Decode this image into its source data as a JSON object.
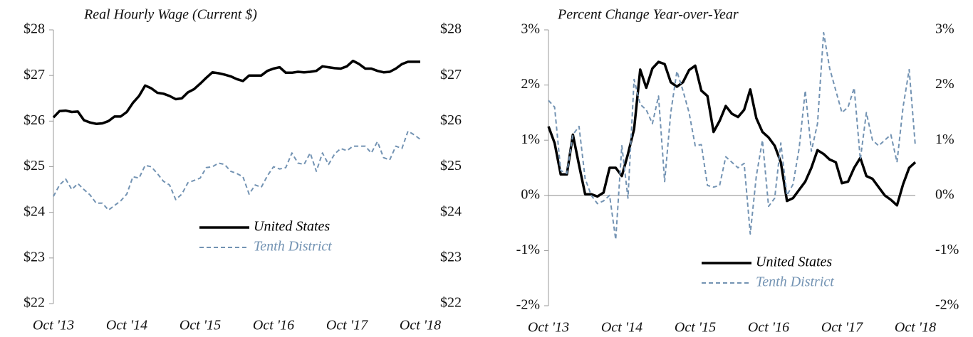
{
  "chart_data": [
    {
      "type": "line",
      "title": "Real Hourly Wage (Current $)",
      "categories": [
        "Oct '13",
        null,
        null,
        null,
        null,
        null,
        null,
        null,
        null,
        null,
        null,
        null,
        "Oct '14",
        null,
        null,
        null,
        null,
        null,
        null,
        null,
        null,
        null,
        null,
        null,
        "Oct '15",
        null,
        null,
        null,
        null,
        null,
        null,
        null,
        null,
        null,
        null,
        null,
        "Oct '16",
        null,
        null,
        null,
        null,
        null,
        null,
        null,
        null,
        null,
        null,
        null,
        "Oct '17",
        null,
        null,
        null,
        null,
        null,
        null,
        null,
        null,
        null,
        null,
        null,
        "Oct '18"
      ],
      "series": [
        {
          "name": "United States",
          "color": "#000000",
          "dashed": false,
          "values": [
            26.08,
            26.22,
            26.23,
            26.2,
            26.21,
            26.02,
            25.97,
            25.94,
            25.95,
            26.0,
            26.1,
            26.1,
            26.2,
            26.4,
            26.55,
            26.78,
            26.72,
            26.62,
            26.6,
            26.55,
            26.48,
            26.5,
            26.63,
            26.7,
            26.82,
            26.95,
            27.07,
            27.05,
            27.02,
            26.98,
            26.92,
            26.88,
            27.0,
            27.0,
            27.0,
            27.1,
            27.15,
            27.18,
            27.06,
            27.06,
            27.08,
            27.07,
            27.08,
            27.1,
            27.2,
            27.18,
            27.16,
            27.15,
            27.2,
            27.32,
            27.25,
            27.15,
            27.15,
            27.1,
            27.07,
            27.08,
            27.15,
            27.25,
            27.3,
            27.3,
            27.3
          ]
        },
        {
          "name": "Tenth District",
          "color": "#7393b3",
          "dashed": true,
          "values": [
            24.35,
            24.6,
            24.73,
            24.5,
            24.63,
            24.5,
            24.38,
            24.2,
            24.2,
            24.05,
            24.15,
            24.25,
            24.4,
            24.78,
            24.75,
            25.03,
            25.0,
            24.85,
            24.68,
            24.6,
            24.28,
            24.4,
            24.65,
            24.7,
            24.75,
            24.98,
            25.0,
            25.08,
            25.05,
            24.9,
            24.85,
            24.78,
            24.4,
            24.6,
            24.55,
            24.8,
            25.0,
            24.95,
            24.98,
            25.3,
            25.08,
            25.05,
            25.3,
            24.9,
            25.3,
            25.05,
            25.28,
            25.4,
            25.35,
            25.45,
            25.45,
            25.45,
            25.3,
            25.55,
            25.2,
            25.15,
            25.45,
            25.4,
            25.78,
            25.7,
            25.6
          ]
        }
      ],
      "ylim": [
        22,
        28
      ],
      "yticks": [
        {
          "value": 22,
          "label": "$22"
        },
        {
          "value": 23,
          "label": "$23"
        },
        {
          "value": 24,
          "label": "$24"
        },
        {
          "value": 25,
          "label": "$25"
        },
        {
          "value": 26,
          "label": "$26"
        },
        {
          "value": 27,
          "label": "$27"
        },
        {
          "value": 28,
          "label": "$28"
        }
      ],
      "zero_line": false
    },
    {
      "type": "line",
      "title": "Percent Change Year-over-Year",
      "categories": [
        "Oct '13",
        null,
        null,
        null,
        null,
        null,
        null,
        null,
        null,
        null,
        null,
        null,
        "Oct '14",
        null,
        null,
        null,
        null,
        null,
        null,
        null,
        null,
        null,
        null,
        null,
        "Oct '15",
        null,
        null,
        null,
        null,
        null,
        null,
        null,
        null,
        null,
        null,
        null,
        "Oct '16",
        null,
        null,
        null,
        null,
        null,
        null,
        null,
        null,
        null,
        null,
        null,
        "Oct '17",
        null,
        null,
        null,
        null,
        null,
        null,
        null,
        null,
        null,
        null,
        null,
        "Oct '18"
      ],
      "series": [
        {
          "name": "United States",
          "color": "#000000",
          "dashed": false,
          "values": [
            1.25,
            0.95,
            0.38,
            0.38,
            1.1,
            0.55,
            0.02,
            0.02,
            -0.02,
            0.05,
            0.5,
            0.5,
            0.35,
            0.75,
            1.2,
            2.28,
            1.95,
            2.3,
            2.42,
            2.38,
            2.05,
            1.97,
            2.05,
            2.27,
            2.35,
            1.9,
            1.8,
            1.15,
            1.35,
            1.62,
            1.48,
            1.42,
            1.55,
            1.92,
            1.4,
            1.15,
            1.05,
            0.9,
            0.6,
            -0.1,
            -0.05,
            0.1,
            0.25,
            0.5,
            0.82,
            0.75,
            0.65,
            0.6,
            0.22,
            0.25,
            0.5,
            0.68,
            0.35,
            0.3,
            0.15,
            0.0,
            -0.08,
            -0.18,
            0.2,
            0.5,
            0.6
          ]
        },
        {
          "name": "Tenth District",
          "color": "#7393b3",
          "dashed": true,
          "values": [
            1.72,
            1.6,
            0.45,
            0.4,
            1.1,
            1.25,
            0.3,
            0.0,
            -0.15,
            -0.1,
            0.0,
            -0.8,
            0.9,
            -0.05,
            2.1,
            1.65,
            1.55,
            1.3,
            1.8,
            0.25,
            1.5,
            2.25,
            1.9,
            1.5,
            0.9,
            0.92,
            0.18,
            0.15,
            0.18,
            0.7,
            0.6,
            0.5,
            0.58,
            -0.7,
            0.35,
            1.0,
            -0.2,
            -0.05,
            0.95,
            0.0,
            0.2,
            0.85,
            1.9,
            0.8,
            1.3,
            2.95,
            2.3,
            1.9,
            1.5,
            1.6,
            1.95,
            0.65,
            1.5,
            1.0,
            0.9,
            1.0,
            1.1,
            0.6,
            1.6,
            2.28,
            0.9
          ]
        }
      ],
      "ylim": [
        -2,
        3
      ],
      "yticks": [
        {
          "value": -2,
          "label": "-2%"
        },
        {
          "value": -1,
          "label": "-1%"
        },
        {
          "value": 0,
          "label": "0%"
        },
        {
          "value": 1,
          "label": "1%"
        },
        {
          "value": 2,
          "label": "2%"
        },
        {
          "value": 3,
          "label": "3%"
        }
      ],
      "zero_line": true
    }
  ]
}
